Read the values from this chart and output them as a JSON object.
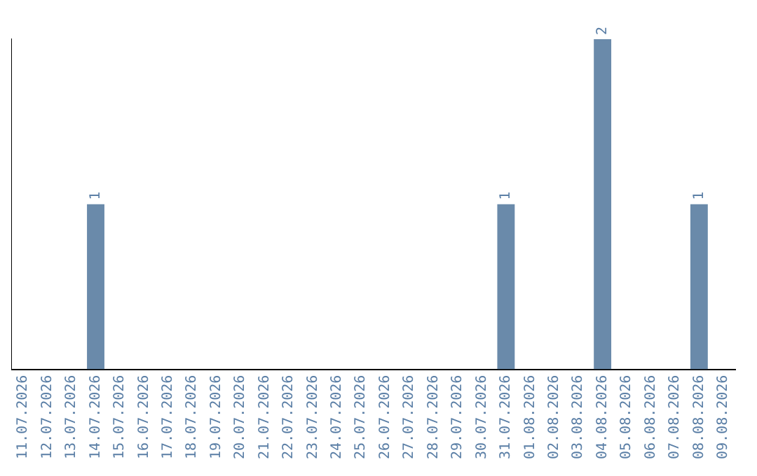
{
  "chart_data": {
    "type": "bar",
    "categories": [
      "11.07.2026",
      "12.07.2026",
      "13.07.2026",
      "14.07.2026",
      "15.07.2026",
      "16.07.2026",
      "17.07.2026",
      "18.07.2026",
      "19.07.2026",
      "20.07.2026",
      "21.07.2026",
      "22.07.2026",
      "23.07.2026",
      "24.07.2026",
      "25.07.2026",
      "26.07.2026",
      "27.07.2026",
      "28.07.2026",
      "29.07.2026",
      "30.07.2026",
      "31.07.2026",
      "01.08.2026",
      "02.08.2026",
      "03.08.2026",
      "04.08.2026",
      "05.08.2026",
      "06.08.2026",
      "07.08.2026",
      "08.08.2026",
      "09.08.2026"
    ],
    "values": [
      0,
      0,
      0,
      1,
      0,
      0,
      0,
      0,
      0,
      0,
      0,
      0,
      0,
      0,
      0,
      0,
      0,
      0,
      0,
      0,
      1,
      0,
      0,
      0,
      2,
      0,
      0,
      0,
      1,
      0
    ],
    "value_labels": [
      null,
      null,
      null,
      "1",
      null,
      null,
      null,
      null,
      null,
      null,
      null,
      null,
      null,
      null,
      null,
      null,
      null,
      null,
      null,
      null,
      "1",
      null,
      null,
      null,
      "2",
      null,
      null,
      null,
      "1",
      null
    ],
    "color": "#6a8aaa",
    "tick_labels": "x",
    "grid": false,
    "legend": false
  }
}
